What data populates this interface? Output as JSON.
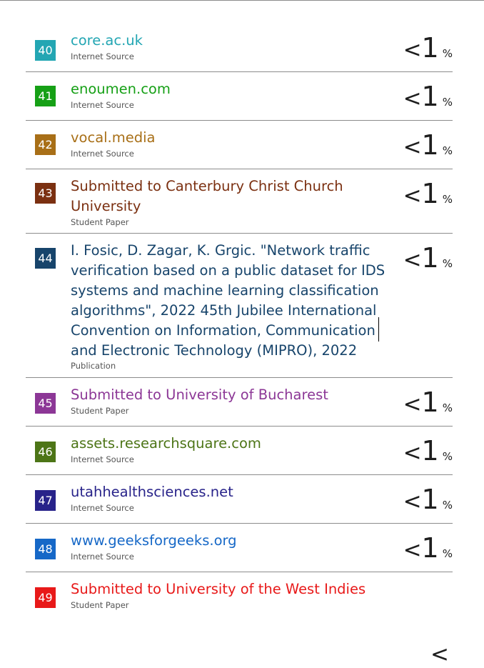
{
  "sources": [
    {
      "number": "40",
      "title_lines": [
        "core.ac.uk"
      ],
      "type": "Internet Source",
      "percent_prefix": "<",
      "percent_value": "1",
      "percent_sign": "%",
      "color": "#23a6b3"
    },
    {
      "number": "41",
      "title_lines": [
        "enoumen.com"
      ],
      "type": "Internet Source",
      "percent_prefix": "<",
      "percent_value": "1",
      "percent_sign": "%",
      "color": "#16a016"
    },
    {
      "number": "42",
      "title_lines": [
        "vocal.media"
      ],
      "type": "Internet Source",
      "percent_prefix": "<",
      "percent_value": "1",
      "percent_sign": "%",
      "color": "#a86f17"
    },
    {
      "number": "43",
      "title_lines": [
        "Submitted to Canterbury Christ Church",
        "University"
      ],
      "type": "Student Paper",
      "percent_prefix": "<",
      "percent_value": "1",
      "percent_sign": "%",
      "color": "#7b3011"
    },
    {
      "number": "44",
      "title_lines": [
        "I. Fosic, D. Zagar, K. Grgic. \"Network traffic",
        "verification based on a public dataset for IDS",
        "systems and machine learning classification",
        "algorithms\", 2022 45th Jubilee International",
        "Convention on Information, Communication",
        "and Electronic Technology (MIPRO), 2022"
      ],
      "type": "Publication",
      "percent_prefix": "<",
      "percent_value": "1",
      "percent_sign": "%",
      "color": "#17446b"
    },
    {
      "number": "45",
      "title_lines": [
        "Submitted to University of Bucharest"
      ],
      "type": "Student Paper",
      "percent_prefix": "<",
      "percent_value": "1",
      "percent_sign": "%",
      "color": "#8c3796"
    },
    {
      "number": "46",
      "title_lines": [
        "assets.researchsquare.com"
      ],
      "type": "Internet Source",
      "percent_prefix": "<",
      "percent_value": "1",
      "percent_sign": "%",
      "color": "#4d7517"
    },
    {
      "number": "47",
      "title_lines": [
        "utahhealthsciences.net"
      ],
      "type": "Internet Source",
      "percent_prefix": "<",
      "percent_value": "1",
      "percent_sign": "%",
      "color": "#28238a"
    },
    {
      "number": "48",
      "title_lines": [
        "www.geeksforgeeks.org"
      ],
      "type": "Internet Source",
      "percent_prefix": "<",
      "percent_value": "1",
      "percent_sign": "%",
      "color": "#1668c7"
    },
    {
      "number": "49",
      "title_lines": [
        "Submitted to University of the West Indies"
      ],
      "type": "Student Paper",
      "percent_prefix": "<",
      "percent_value": "",
      "percent_sign": "",
      "color": "#e81919"
    }
  ]
}
